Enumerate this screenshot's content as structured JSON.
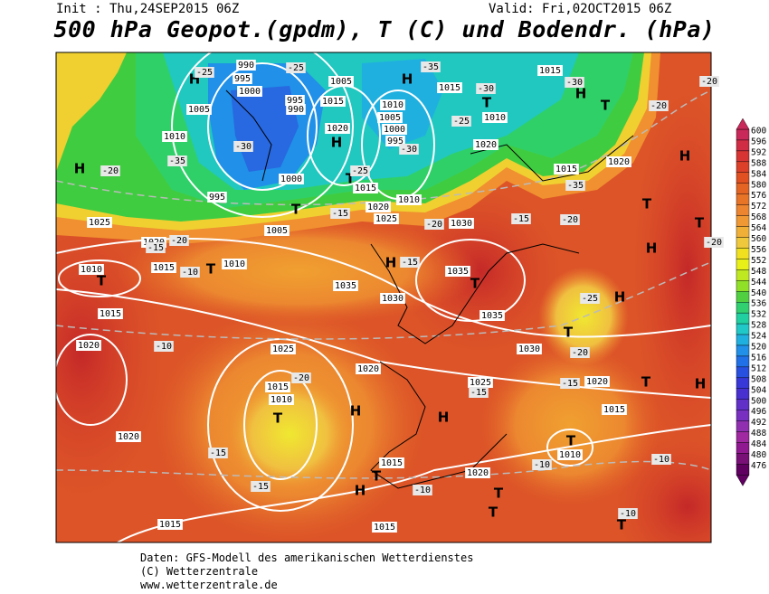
{
  "header": {
    "init": "Init : Thu,24SEP2015 06Z",
    "valid": "Valid: Fri,02OCT2015 06Z",
    "title": "500 hPa Geopot.(gpdm), T (C) und Bodendr. (hPa)"
  },
  "colorbar": {
    "levels": [
      "600",
      "596",
      "592",
      "588",
      "584",
      "580",
      "576",
      "572",
      "568",
      "564",
      "560",
      "556",
      "552",
      "548",
      "544",
      "540",
      "536",
      "532",
      "528",
      "524",
      "520",
      "516",
      "512",
      "508",
      "504",
      "500",
      "496",
      "492",
      "488",
      "484",
      "480",
      "476"
    ],
    "colors": [
      "#c8285a",
      "#d02c44",
      "#d83434",
      "#dc4028",
      "#e05020",
      "#e46424",
      "#e87428",
      "#ec8430",
      "#f09834",
      "#f0b038",
      "#f0c83c",
      "#f0e020",
      "#e8f018",
      "#c0e820",
      "#90e028",
      "#50d040",
      "#30d070",
      "#20d0a0",
      "#20c8c8",
      "#20b0e0",
      "#2090e8",
      "#2070e8",
      "#2850e0",
      "#3838d8",
      "#4830d0",
      "#6030c8",
      "#7830c0",
      "#9030b0",
      "#a028a0",
      "#901890",
      "#781078",
      "#600060"
    ]
  },
  "map_labels": [
    "H",
    "-25",
    "990",
    "995",
    "1000",
    "-25",
    "1005",
    "H",
    "-35",
    "1015",
    "1015",
    "-30",
    "H",
    "T",
    "-30",
    "1010",
    "-25",
    "1005",
    "1010",
    "-35",
    "H",
    "-20",
    "-30",
    "995",
    "990",
    "1015",
    "1010",
    "1005",
    "1000",
    "995",
    "-30",
    "H",
    "1020",
    "T",
    "-25",
    "1015",
    "1000",
    "995",
    "T",
    "1005",
    "1010",
    "1020",
    "1025",
    "1030",
    "-15",
    "-20",
    "1020",
    "1015",
    "-35",
    "1020",
    "-20",
    "H",
    "T",
    "-20",
    "-15",
    "-20",
    "T",
    "T",
    "H",
    "-20",
    "1025",
    "1020",
    "-20",
    "-15",
    "1010",
    "T",
    "1015",
    "-10",
    "T",
    "1010",
    "H",
    "-15",
    "1035",
    "T",
    "1035",
    "1030",
    "-25",
    "H",
    "1035",
    "1015",
    "1020",
    "-10",
    "1025",
    "1030",
    "1020",
    "-20",
    "T",
    "-20",
    "1015",
    "1010",
    "T",
    "H",
    "H",
    "1025",
    "-15",
    "-15",
    "1020",
    "T",
    "1015",
    "H",
    "1020",
    "-15",
    "T",
    "1010",
    "1015",
    "T",
    "H",
    "-15",
    "1020",
    "-10",
    "-10",
    "-10",
    "T",
    "T",
    "1015",
    "1015",
    "-10",
    "T"
  ],
  "footer": [
    "Daten: GFS-Modell des amerikanischen Wetterdienstes",
    "(C) Wetterzentrale",
    "www.wetterzentrale.de"
  ]
}
